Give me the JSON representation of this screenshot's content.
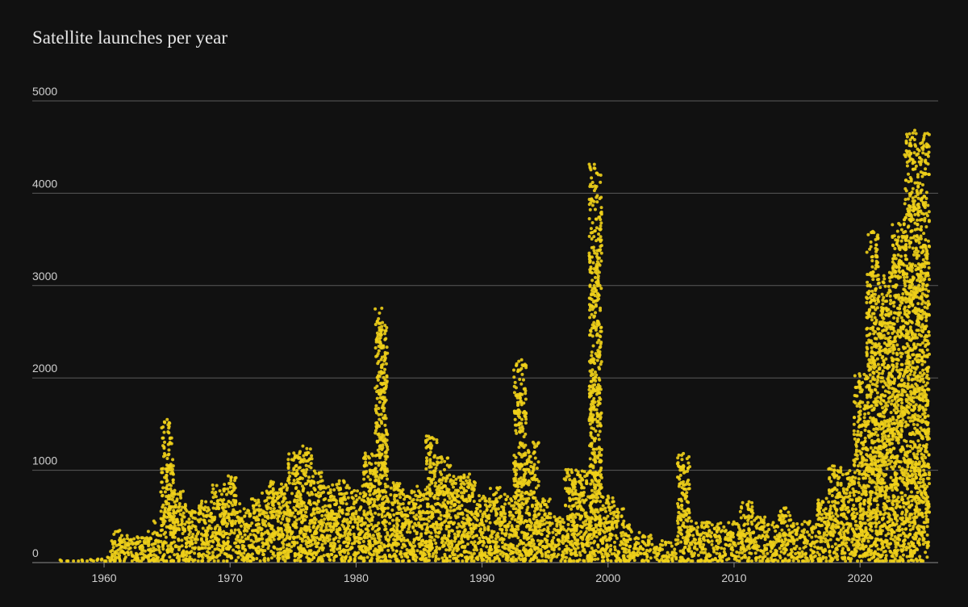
{
  "chart_data": {
    "type": "dot-column",
    "title": "Satellite launches per year",
    "x": [
      1957,
      1958,
      1959,
      1960,
      1961,
      1962,
      1963,
      1964,
      1965,
      1966,
      1967,
      1968,
      1969,
      1970,
      1971,
      1972,
      1973,
      1974,
      1975,
      1976,
      1977,
      1978,
      1979,
      1980,
      1981,
      1982,
      1983,
      1984,
      1985,
      1986,
      1987,
      1988,
      1989,
      1990,
      1991,
      1992,
      1993,
      1994,
      1995,
      1996,
      1997,
      1998,
      1999,
      2000,
      2001,
      2002,
      2003,
      2004,
      2005,
      2006,
      2007,
      2008,
      2009,
      2010,
      2011,
      2012,
      2013,
      2014,
      2015,
      2016,
      2017,
      2018,
      2019,
      2020,
      2021,
      2022,
      2023,
      2024,
      2025
    ],
    "values": [
      30,
      30,
      50,
      60,
      400,
      300,
      350,
      450,
      1550,
      800,
      600,
      700,
      850,
      950,
      650,
      700,
      880,
      850,
      1200,
      1280,
      1000,
      850,
      900,
      800,
      1200,
      2780,
      900,
      800,
      850,
      1380,
      1150,
      950,
      980,
      750,
      820,
      750,
      2200,
      1350,
      700,
      500,
      1050,
      1000,
      4330,
      750,
      600,
      420,
      300,
      250,
      250,
      1200,
      450,
      450,
      430,
      450,
      700,
      500,
      450,
      620,
      430,
      450,
      700,
      1050,
      1000,
      2050,
      3600,
      3150,
      3700,
      4700,
      4680
    ],
    "color": "#f0d01a",
    "xlim": [
      1954.3,
      2026.2
    ],
    "ylim": [
      0,
      5000
    ],
    "xticks": [
      1960,
      1970,
      1980,
      1990,
      2000,
      2010,
      2020
    ],
    "yticks": [
      0,
      1000,
      2000,
      3000,
      4000,
      5000
    ],
    "grid": true
  }
}
